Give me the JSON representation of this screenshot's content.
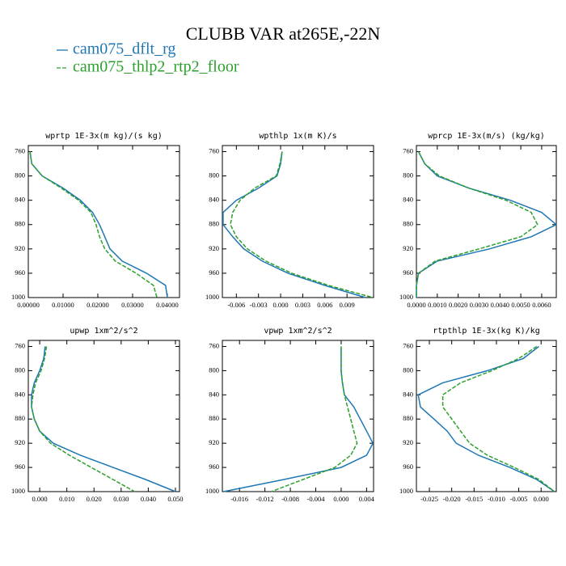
{
  "title": "CLUBB VAR at265E,-22N",
  "legend": [
    {
      "name": "cam075_dflt_rg",
      "color": "#1f77b4",
      "linestyle": "solid"
    },
    {
      "name": "cam075_thlp2_rtp2_floor",
      "color": "#2ca02c",
      "linestyle": "dashed"
    }
  ],
  "chart_data": [
    {
      "type": "line",
      "title": "wprtp   1E-3x(m kg)/(s kg)",
      "ylim": [
        750,
        1000
      ],
      "invert_y": true,
      "yticks": [
        760,
        800,
        840,
        880,
        920,
        960,
        1000
      ],
      "xlim": [
        0,
        0.0435
      ],
      "xticks": [
        {
          "value": 0,
          "label": "0.00000"
        },
        {
          "value": 0.01,
          "label": "0.01000"
        },
        {
          "value": 0.02,
          "label": "0.02000"
        },
        {
          "value": 0.03,
          "label": "0.03000"
        },
        {
          "value": 0.04,
          "label": "0.04000"
        }
      ],
      "y": [
        760,
        780,
        800,
        820,
        840,
        860,
        880,
        900,
        920,
        940,
        960,
        980,
        1000
      ],
      "series": [
        {
          "values": [
            0.0005,
            0.001,
            0.004,
            0.01,
            0.015,
            0.0185,
            0.0205,
            0.022,
            0.0235,
            0.027,
            0.034,
            0.0395,
            0.04
          ]
        },
        {
          "values": [
            0.0005,
            0.001,
            0.004,
            0.0095,
            0.0145,
            0.018,
            0.0195,
            0.0205,
            0.022,
            0.025,
            0.031,
            0.036,
            0.037
          ]
        }
      ]
    },
    {
      "type": "line",
      "title": "wpthlp   1x(m K)/s",
      "ylim": [
        750,
        1000
      ],
      "invert_y": true,
      "yticks": [
        760,
        800,
        840,
        880,
        920,
        960,
        1000
      ],
      "xlim": [
        -0.0079,
        0.0126
      ],
      "xticks": [
        -0.006,
        -0.003,
        {
          "value": 0,
          "label": "0.000"
        },
        0.003,
        0.006,
        0.009
      ],
      "y": [
        760,
        780,
        800,
        820,
        840,
        860,
        880,
        900,
        920,
        940,
        960,
        980,
        1000
      ],
      "series": [
        {
          "values": [
            0.0002,
            0,
            -0.0005,
            -0.003,
            -0.006,
            -0.0078,
            -0.0078,
            -0.0065,
            -0.005,
            -0.0025,
            0.001,
            0.006,
            0.0115
          ]
        },
        {
          "values": [
            0.0002,
            -0.0001,
            -0.0006,
            -0.0035,
            -0.0055,
            -0.0065,
            -0.0068,
            -0.006,
            -0.0045,
            -0.002,
            0.0015,
            0.0065,
            0.0125
          ]
        }
      ]
    },
    {
      "type": "line",
      "title": "wprcp   1E-3x(m/s) (kg/kg)",
      "ylim": [
        750,
        1000
      ],
      "invert_y": true,
      "yticks": [
        760,
        800,
        840,
        880,
        920,
        960,
        1000
      ],
      "xlim": [
        0,
        0.0067
      ],
      "xticks": [
        {
          "value": 0,
          "label": "0.0000"
        },
        {
          "value": 0.001,
          "label": "0.0010"
        },
        {
          "value": 0.002,
          "label": "0.0020"
        },
        {
          "value": 0.003,
          "label": "0.0030"
        },
        {
          "value": 0.004,
          "label": "0.0040"
        },
        {
          "value": 0.005,
          "label": "0.0050"
        },
        {
          "value": 0.006,
          "label": "0.0060"
        }
      ],
      "y": [
        760,
        780,
        800,
        820,
        840,
        860,
        880,
        900,
        920,
        940,
        960,
        980,
        1000
      ],
      "series": [
        {
          "values": [
            0.0001,
            0.0004,
            0.001,
            0.0025,
            0.0045,
            0.006,
            0.0067,
            0.0055,
            0.0035,
            0.001,
            0.0001,
            0,
            0
          ]
        },
        {
          "values": [
            0.0001,
            0.0004,
            0.0011,
            0.0025,
            0.0043,
            0.0055,
            0.0058,
            0.005,
            0.003,
            0.0009,
            0.0001,
            0,
            0
          ]
        }
      ]
    },
    {
      "type": "line",
      "title": "upwp   1xm^2/s^2",
      "ylim": [
        750,
        1000
      ],
      "invert_y": true,
      "yticks": [
        760,
        800,
        840,
        880,
        920,
        960,
        1000
      ],
      "xlim": [
        -0.0042,
        0.0515
      ],
      "xticks": [
        {
          "value": 0,
          "label": "0.000"
        },
        {
          "value": 0.01,
          "label": "0.010"
        },
        {
          "value": 0.02,
          "label": "0.020"
        },
        {
          "value": 0.03,
          "label": "0.030"
        },
        {
          "value": 0.04,
          "label": "0.040"
        },
        {
          "value": 0.05,
          "label": "0.050"
        }
      ],
      "y": [
        760,
        780,
        800,
        820,
        840,
        860,
        880,
        900,
        920,
        940,
        960,
        980,
        1000
      ],
      "series": [
        {
          "values": [
            0.002,
            0.0015,
            0,
            -0.002,
            -0.003,
            -0.003,
            -0.002,
            0,
            0.005,
            0.015,
            0.027,
            0.039,
            0.05
          ]
        },
        {
          "values": [
            0.0025,
            0.0018,
            0.0005,
            -0.0015,
            -0.0025,
            -0.003,
            -0.002,
            0,
            0.004,
            0.011,
            0.019,
            0.027,
            0.035
          ]
        }
      ]
    },
    {
      "type": "line",
      "title": "vpwp   1xm^2/s^2",
      "ylim": [
        750,
        1000
      ],
      "invert_y": true,
      "yticks": [
        760,
        800,
        840,
        880,
        920,
        960,
        1000
      ],
      "xlim": [
        -0.0187,
        0.0051
      ],
      "xticks": [
        -0.016,
        -0.012,
        -0.008,
        -0.004,
        {
          "value": 0,
          "label": "0.000"
        },
        0.004
      ],
      "y": [
        760,
        780,
        800,
        820,
        840,
        860,
        880,
        900,
        920,
        940,
        960,
        980,
        1000
      ],
      "series": [
        {
          "values": [
            0,
            0,
            0,
            0.0002,
            0.0005,
            0.002,
            0.003,
            0.004,
            0.005,
            0.004,
            0,
            -0.009,
            -0.0185
          ]
        },
        {
          "values": [
            0,
            0,
            0,
            0.0002,
            0.0005,
            0.001,
            0.0015,
            0.002,
            0.0025,
            0.0015,
            -0.001,
            -0.006,
            -0.011
          ]
        }
      ]
    },
    {
      "type": "line",
      "title": "rtpthlp   1E-3x(kg K)/kg",
      "ylim": [
        750,
        1000
      ],
      "invert_y": true,
      "yticks": [
        760,
        800,
        840,
        880,
        920,
        960,
        1000
      ],
      "xlim": [
        -0.0279,
        0.0034
      ],
      "xticks": [
        -0.025,
        {
          "value": -0.02,
          "label": "-0.020"
        },
        -0.015,
        {
          "value": -0.01,
          "label": "-0.010"
        },
        -0.005,
        {
          "value": 0,
          "label": "0.000"
        }
      ],
      "y": [
        760,
        780,
        800,
        820,
        840,
        860,
        880,
        900,
        920,
        940,
        960,
        980,
        1000
      ],
      "series": [
        {
          "values": [
            -0.0005,
            -0.004,
            -0.012,
            -0.022,
            -0.0275,
            -0.027,
            -0.024,
            -0.021,
            -0.019,
            -0.014,
            -0.007,
            -0.001,
            0.003
          ]
        },
        {
          "values": [
            -0.001,
            -0.005,
            -0.011,
            -0.018,
            -0.022,
            -0.022,
            -0.02,
            -0.018,
            -0.016,
            -0.012,
            -0.006,
            -0.0005,
            0.003
          ]
        }
      ]
    }
  ]
}
